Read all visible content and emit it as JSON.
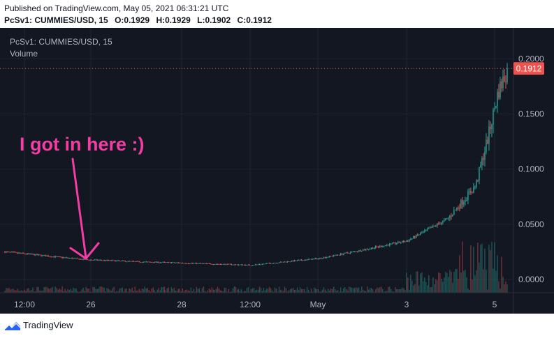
{
  "header": {
    "published": "Published on TradingView.com, May 05, 2021 06:31:21 UTC",
    "symbol_line": "PcSv1: CUMMIES/USD, 15",
    "o_label": "O:",
    "o_value": "0.1929",
    "h_label": "H:",
    "h_value": "0.1929",
    "l_label": "L:",
    "l_value": "0.1902",
    "c_label": "C:",
    "c_value": "0.1912"
  },
  "legend": {
    "symbol": "PcSv1: CUMMIES/USD, 15",
    "volume": "Volume"
  },
  "annotation": {
    "text": "I got in here :)",
    "color": "#f23ea2"
  },
  "colors": {
    "background": "#131722",
    "up": "#26a69a",
    "down": "#ef5350",
    "grid": "#1f2430",
    "axis_text": "#b2b5be",
    "price_label_bg": "#ef5350"
  },
  "footer": {
    "brand": "TradingView",
    "logo_icon": "tradingview-logo-icon"
  },
  "chart_data": {
    "type": "candlestick",
    "symbol": "CUMMIES/USD",
    "interval": "15",
    "x_ticks": [
      "12:00",
      "26",
      "28",
      "12:00",
      "May",
      "3",
      "5"
    ],
    "y_ticks": [
      "0.0000",
      "0.0500",
      "0.1000",
      "0.1500",
      "0.2000"
    ],
    "ylim": [
      -0.012,
      0.228
    ],
    "last_price": "0.1912",
    "grid": true,
    "series": [
      {
        "name": "",
        "x": [
          "12:00",
          "26",
          "27",
          "28",
          "12:00",
          "May",
          "2",
          "3",
          "4",
          "4.5",
          "4.8",
          "5",
          "5.1"
        ],
        "values": [
          0.025,
          0.018,
          0.016,
          0.015,
          0.013,
          0.019,
          0.027,
          0.035,
          0.055,
          0.085,
          0.13,
          0.17,
          0.1912
        ]
      }
    ]
  }
}
